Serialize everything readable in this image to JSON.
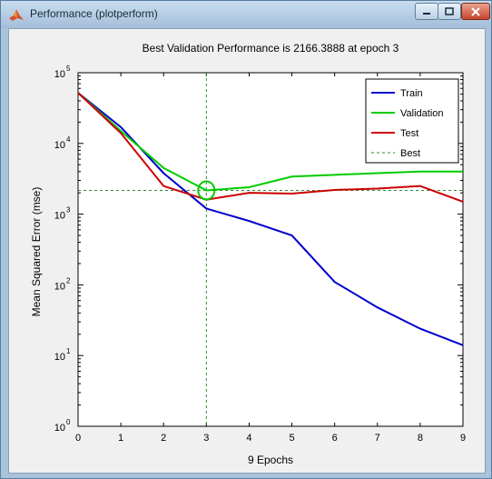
{
  "window": {
    "title": "Performance (plotperform)",
    "buttons": {
      "minimize": "minimize",
      "maximize": "maximize",
      "close": "close"
    }
  },
  "colors": {
    "train": "#0000cc",
    "validation": "#00cc00",
    "test": "#cc0000",
    "best": "#2e8b2e",
    "figure_bg": "#f0f0f0",
    "titlebar": "#b4cce4"
  },
  "chart_data": {
    "type": "line",
    "title": "Best Validation Performance is 2166.3888 at epoch 3",
    "xlabel": "9 Epochs",
    "ylabel": "Mean Squared Error  (mse)",
    "xlim": [
      0,
      9
    ],
    "ylim": [
      1,
      100000
    ],
    "yscale": "log",
    "grid": false,
    "legend_position": "top-right",
    "x_ticks": [
      "0",
      "1",
      "2",
      "3",
      "4",
      "5",
      "6",
      "7",
      "8",
      "9"
    ],
    "y_ticks": [
      {
        "value": 1,
        "base": "10",
        "exp": "0"
      },
      {
        "value": 10,
        "base": "10",
        "exp": "1"
      },
      {
        "value": 100,
        "base": "10",
        "exp": "2"
      },
      {
        "value": 1000,
        "base": "10",
        "exp": "3"
      },
      {
        "value": 10000,
        "base": "10",
        "exp": "4"
      },
      {
        "value": 100000,
        "base": "10",
        "exp": "5"
      }
    ],
    "x": [
      0,
      1,
      2,
      3,
      4,
      5,
      6,
      7,
      8,
      9
    ],
    "series": [
      {
        "name": "Train",
        "values": [
          52000,
          17000,
          3800,
          1200,
          800,
          500,
          110,
          48,
          24,
          14
        ]
      },
      {
        "name": "Validation",
        "values": [
          52000,
          15000,
          4500,
          2166,
          2400,
          3400,
          3600,
          3800,
          4000,
          4000
        ]
      },
      {
        "name": "Test",
        "values": [
          52000,
          14000,
          2500,
          1600,
          2000,
          1950,
          2200,
          2300,
          2500,
          1500
        ]
      }
    ],
    "best": {
      "name": "Best",
      "epoch": 3,
      "value": 2166.3888
    }
  }
}
